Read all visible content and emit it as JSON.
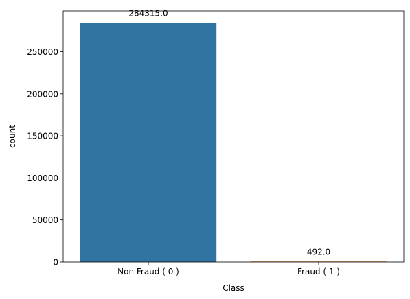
{
  "chart_data": {
    "type": "bar",
    "title": "",
    "xlabel": "Class",
    "ylabel": "count",
    "categories": [
      "Non Fraud ( 0 )",
      "Fraud ( 1 )"
    ],
    "values": [
      284315,
      492
    ],
    "value_labels": [
      "284315.0",
      "492.0"
    ],
    "colors": [
      "#3274a1",
      "#e1812c"
    ],
    "ylim": [
      0,
      298530.75
    ],
    "yticks": [
      0,
      50000,
      100000,
      150000,
      200000,
      250000
    ],
    "ytick_labels": [
      "0",
      "50000",
      "100000",
      "150000",
      "200000",
      "250000"
    ],
    "grid": false,
    "legend": "none"
  }
}
